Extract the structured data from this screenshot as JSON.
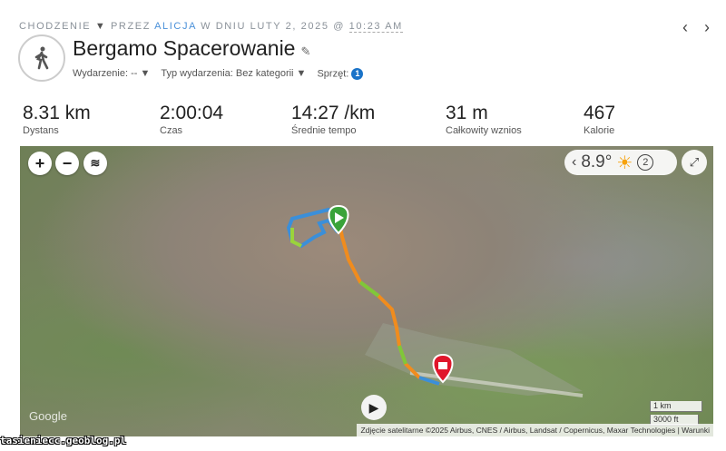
{
  "breadcrumb": {
    "activity_type": "CHODZENIE",
    "by": "PRZEZ",
    "user": "ALICJA",
    "on": "W DNIU LUTY 2, 2025 @",
    "time": "10:23 AM"
  },
  "nav": {
    "prev": "‹",
    "next": "›"
  },
  "title": "Bergamo Spacerowanie",
  "meta": {
    "event": "Wydarzenie: -- ▼",
    "event_type": "Typ wydarzenia: Bez kategorii ▼",
    "gear_label": "Sprzęt:",
    "gear_count": "1"
  },
  "stats": [
    {
      "value": "8.31 km",
      "label": "Dystans"
    },
    {
      "value": "2:00:04",
      "label": "Czas"
    },
    {
      "value": "14:27 /km",
      "label": "Średnie tempo"
    },
    {
      "value": "31 m",
      "label": "Całkowity wznios"
    },
    {
      "value": "467",
      "label": "Kalorie"
    }
  ],
  "map": {
    "temperature": "8.9°",
    "weather_icon": "sun-icon",
    "weather_count": "2",
    "scale_km": "1 km",
    "scale_ft": "3000 ft",
    "google": "Google",
    "attribution": "Zdjęcie satelitarne ©2025 Airbus, CNES / Airbus, Landsat / Copernicus, Maxar Technologies",
    "terms": "Warunki",
    "start_color": "#3aa33a",
    "end_color": "#e0162b"
  },
  "watermark": "tasieniecc.geoblog.pl"
}
